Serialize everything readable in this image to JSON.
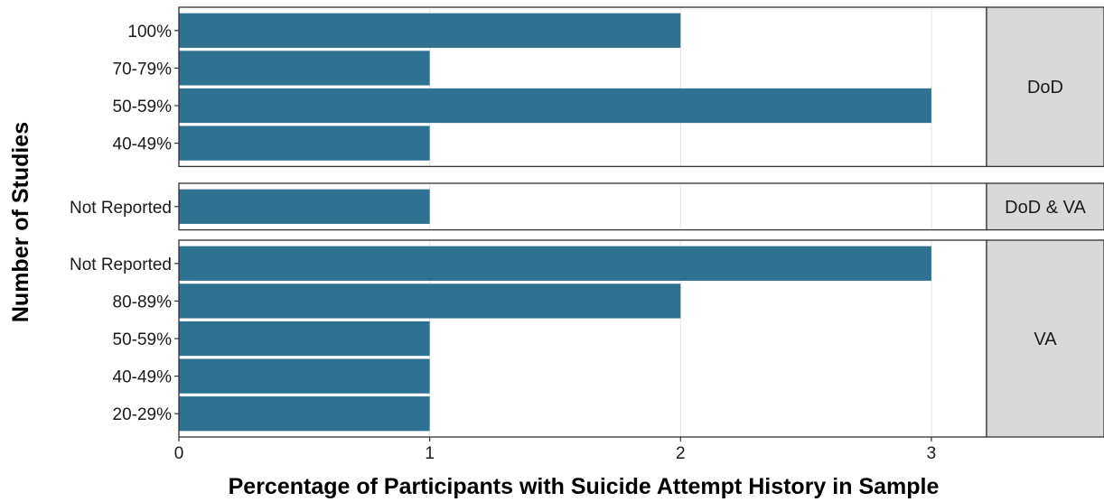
{
  "chart_data": {
    "type": "bar",
    "orientation": "horizontal",
    "faceted": true,
    "xlabel": "Percentage of Participants with Suicide Attempt History in Sample",
    "ylabel": "Number of Studies",
    "xlim": [
      0,
      3.22
    ],
    "xticks": [
      "0",
      "1",
      "2",
      "3"
    ],
    "grid": true,
    "bar_color": "#2e7190",
    "strip_color": "#d9d9d9",
    "facets": [
      {
        "label": "DoD",
        "categories": [
          "100%",
          "70-79%",
          "50-59%",
          "40-49%"
        ],
        "values": [
          2,
          1,
          3,
          1
        ]
      },
      {
        "label": "DoD & VA",
        "categories": [
          "Not Reported"
        ],
        "values": [
          1
        ]
      },
      {
        "label": "VA",
        "categories": [
          "Not Reported",
          "80-89%",
          "50-59%",
          "40-49%",
          "20-29%"
        ],
        "values": [
          3,
          2,
          1,
          1,
          1
        ]
      }
    ]
  }
}
